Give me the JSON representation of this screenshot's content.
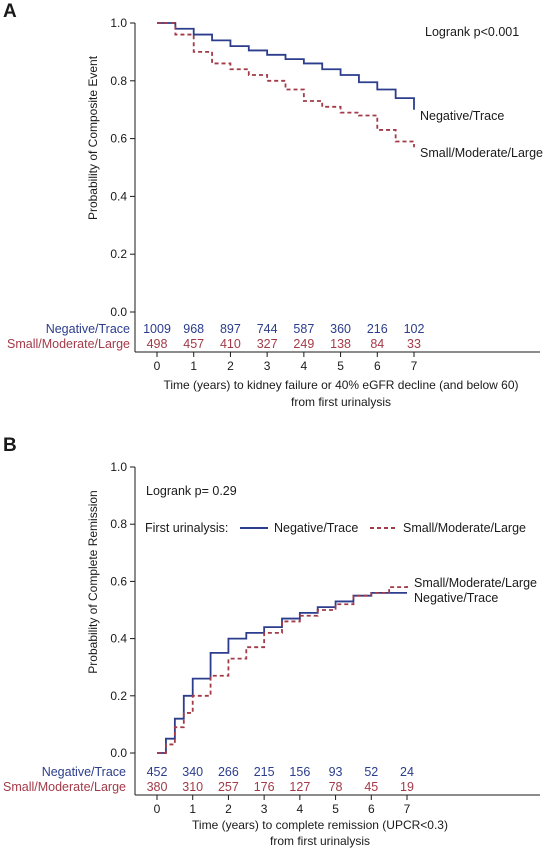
{
  "colors": {
    "series1": "#2b3d8c",
    "series2": "#a33a48",
    "axis": "#1a1a1a"
  },
  "chart_data": [
    {
      "type": "line",
      "panel": "A",
      "step": true,
      "xlabel_lines": [
        "Time (years) to kidney failure or 40% eGFR decline (and below 60)",
        "from first urinalysis"
      ],
      "ylabel": "Probability of Composite Event",
      "xlim": [
        0,
        7
      ],
      "ylim": [
        0,
        1
      ],
      "x_ticks": [
        "0",
        "1",
        "2",
        "3",
        "4",
        "5",
        "6",
        "7"
      ],
      "y_ticks": [
        "0.0",
        "0.2",
        "0.4",
        "0.6",
        "0.8",
        "1.0"
      ],
      "annotation": "Logrank p<0.001",
      "grid": false,
      "series": [
        {
          "name": "Negative/Trace",
          "style": "solid",
          "x": [
            0,
            0.5,
            1,
            1.5,
            2,
            2.5,
            3,
            3.5,
            4,
            4.5,
            5,
            5.5,
            6,
            6.5,
            7
          ],
          "y": [
            1.0,
            0.98,
            0.96,
            0.94,
            0.92,
            0.905,
            0.89,
            0.875,
            0.86,
            0.84,
            0.82,
            0.795,
            0.77,
            0.74,
            0.7
          ]
        },
        {
          "name": "Small/Moderate/Large",
          "style": "dashed",
          "x": [
            0,
            0.5,
            1,
            1.5,
            2,
            2.5,
            3,
            3.5,
            4,
            4.5,
            5,
            5.5,
            6,
            6.5,
            7
          ],
          "y": [
            1.0,
            0.96,
            0.9,
            0.86,
            0.84,
            0.82,
            0.8,
            0.77,
            0.73,
            0.71,
            0.69,
            0.68,
            0.63,
            0.59,
            0.57
          ]
        }
      ],
      "at_risk": [
        {
          "name": "Negative/Trace",
          "values": [
            "1009",
            "968",
            "897",
            "744",
            "587",
            "360",
            "216",
            "102"
          ]
        },
        {
          "name": "Small/Moderate/Large",
          "values": [
            "498",
            "457",
            "410",
            "327",
            "249",
            "138",
            "84",
            "33"
          ]
        }
      ]
    },
    {
      "type": "line",
      "panel": "B",
      "step": true,
      "xlabel_lines": [
        "Time (years) to complete remission (UPCR<0.3)",
        "from first urinalysis"
      ],
      "ylabel": "Probability of Complete Remission",
      "xlim": [
        0,
        7
      ],
      "ylim": [
        0,
        1
      ],
      "x_ticks": [
        "0",
        "1",
        "2",
        "3",
        "4",
        "5",
        "6",
        "7"
      ],
      "y_ticks": [
        "0.0",
        "0.2",
        "0.4",
        "0.6",
        "0.8",
        "1.0"
      ],
      "annotation": "Logrank p= 0.29",
      "legend_title": "First urinalysis:",
      "grid": false,
      "series": [
        {
          "name": "Negative/Trace",
          "style": "solid",
          "x": [
            0,
            0.25,
            0.5,
            0.75,
            1,
            1.5,
            2,
            2.5,
            3,
            3.5,
            4,
            4.5,
            5,
            5.5,
            6,
            6.5,
            7
          ],
          "y": [
            0.0,
            0.05,
            0.12,
            0.2,
            0.26,
            0.35,
            0.4,
            0.42,
            0.44,
            0.47,
            0.49,
            0.51,
            0.53,
            0.55,
            0.56,
            0.56,
            0.56
          ]
        },
        {
          "name": "Small/Moderate/Large",
          "style": "dashed",
          "x": [
            0,
            0.25,
            0.5,
            0.75,
            1,
            1.5,
            2,
            2.5,
            3,
            3.5,
            4,
            4.5,
            5,
            5.5,
            6,
            6.5,
            7
          ],
          "y": [
            0.0,
            0.03,
            0.09,
            0.14,
            0.2,
            0.27,
            0.33,
            0.37,
            0.42,
            0.46,
            0.48,
            0.5,
            0.52,
            0.55,
            0.56,
            0.58,
            0.59
          ]
        }
      ],
      "at_risk": [
        {
          "name": "Negative/Trace",
          "values": [
            "452",
            "340",
            "266",
            "215",
            "156",
            "93",
            "52",
            "24"
          ]
        },
        {
          "name": "Small/Moderate/Large",
          "values": [
            "380",
            "310",
            "257",
            "176",
            "127",
            "78",
            "45",
            "19"
          ]
        }
      ]
    }
  ]
}
